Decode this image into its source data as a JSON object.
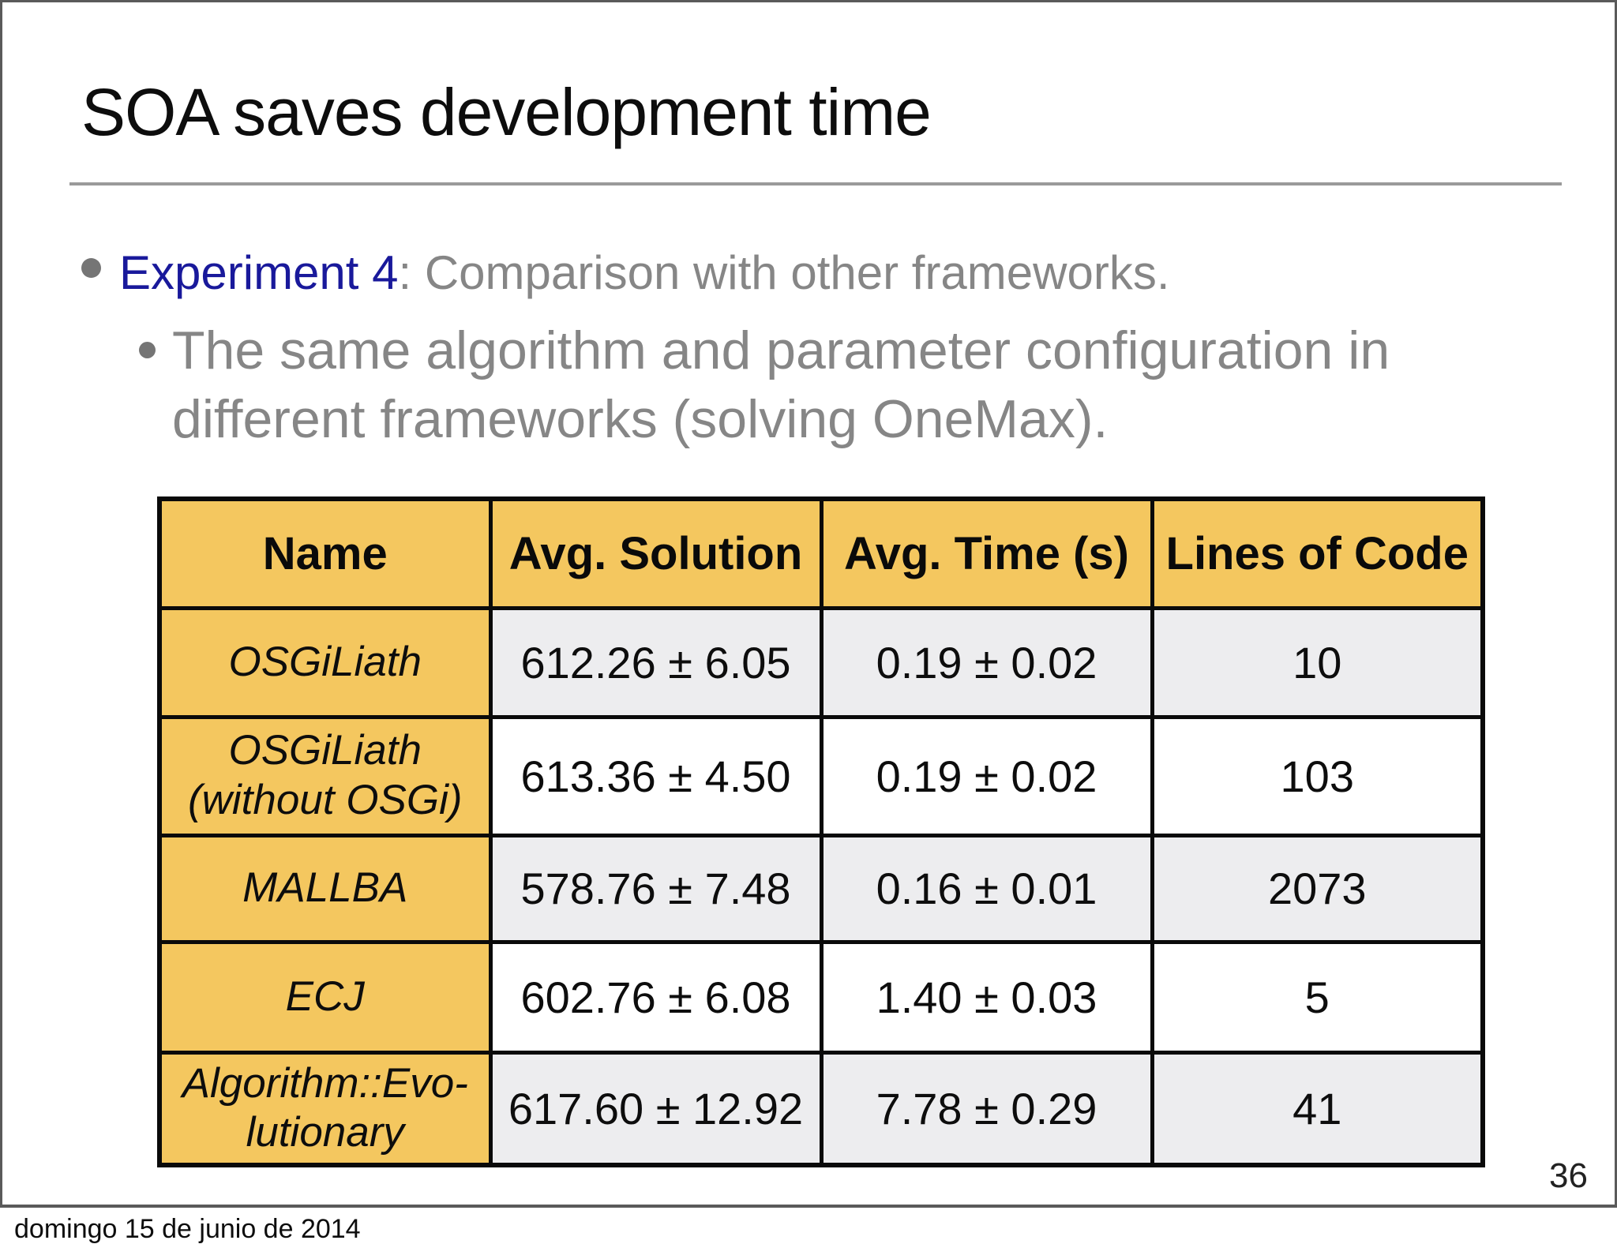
{
  "slide": {
    "title": "SOA saves development time",
    "page_number": "36",
    "footer_date": "domingo 15 de junio de 2014"
  },
  "bullets": {
    "main": {
      "highlight": "Experiment 4",
      "rest": ": Comparison with other frameworks."
    },
    "sub": {
      "text": "The same algorithm and parameter configuration in\ndifferent frameworks (solving OneMax)."
    }
  },
  "table": {
    "headers": {
      "name": "Name",
      "avg_solution": "Avg. Solution",
      "avg_time": "Avg. Time (s)",
      "lines_of_code": "Lines of Code"
    },
    "rows": [
      {
        "name": "OSGiLiath",
        "avg_solution": "612.26 ± 6.05",
        "avg_time": "0.19 ± 0.02",
        "lines_of_code": "10"
      },
      {
        "name": "OSGiLiath\n(without OSGi)",
        "avg_solution": "613.36 ± 4.50",
        "avg_time": "0.19 ± 0.02",
        "lines_of_code": "103"
      },
      {
        "name": "MALLBA",
        "avg_solution": "578.76 ± 7.48",
        "avg_time": "0.16 ± 0.01",
        "lines_of_code": "2073"
      },
      {
        "name": "ECJ",
        "avg_solution": "602.76 ± 6.08",
        "avg_time": "1.40 ± 0.03",
        "lines_of_code": "5"
      },
      {
        "name": "Algorithm::Evo-\nlutionary",
        "avg_solution": "617.60 ± 12.92",
        "avg_time": "7.78 ± 0.29",
        "lines_of_code": "41"
      }
    ]
  },
  "colors": {
    "table_accent_yellow": "#f4c75f",
    "row_stripe_gray": "#ededef",
    "highlight_blue": "#19199b",
    "body_text_gray": "#868686",
    "frame_border_gray": "#5a5a5a",
    "table_border_black": "#0a0a0a"
  }
}
